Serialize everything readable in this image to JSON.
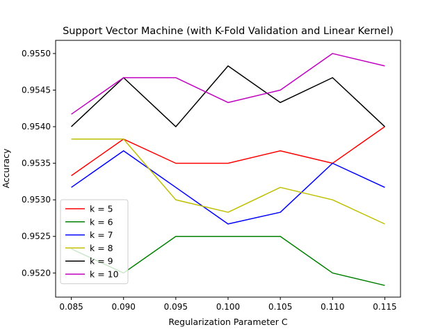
{
  "chart_data": {
    "type": "line",
    "title": "Support Vector Machine (with K-Fold Validation and Linear Kernel)",
    "xlabel": "Regularization Parameter C",
    "ylabel": "Accuracy",
    "x": [
      0.085,
      0.09,
      0.095,
      0.1,
      0.105,
      0.11,
      0.115
    ],
    "x_tick_labels": [
      "0.085",
      "0.090",
      "0.095",
      "0.100",
      "0.105",
      "0.110",
      "0.115"
    ],
    "y_ticks": [
      0.952,
      0.9525,
      0.953,
      0.9535,
      0.954,
      0.9545,
      0.955
    ],
    "y_tick_labels": [
      "0.9520",
      "0.9525",
      "0.9530",
      "0.9535",
      "0.9540",
      "0.9545",
      "0.9550"
    ],
    "xlim": [
      0.0835,
      0.1165
    ],
    "ylim": [
      0.95167,
      0.95518
    ],
    "grid": false,
    "legend_position": "lower-left",
    "series": [
      {
        "name": "k = 5",
        "color": "#ff0000",
        "values": [
          0.95333,
          0.95383,
          0.9535,
          0.9535,
          0.95367,
          0.9535,
          0.954
        ]
      },
      {
        "name": "k = 6",
        "color": "#008000",
        "values": [
          0.95233,
          0.952,
          0.9525,
          0.9525,
          0.9525,
          0.952,
          0.95183
        ]
      },
      {
        "name": "k = 7",
        "color": "#0000ff",
        "values": [
          0.95317,
          0.95367,
          0.95317,
          0.95267,
          0.95283,
          0.9535,
          0.95317
        ]
      },
      {
        "name": "k = 8",
        "color": "#bfbf00",
        "values": [
          0.95383,
          0.95383,
          0.953,
          0.95283,
          0.95317,
          0.953,
          0.95267
        ]
      },
      {
        "name": "k = 9",
        "color": "#000000",
        "values": [
          0.954,
          0.95467,
          0.954,
          0.95483,
          0.95433,
          0.95467,
          0.954
        ]
      },
      {
        "name": "k = 10",
        "color": "#bf00bf",
        "values": [
          0.95417,
          0.95467,
          0.95467,
          0.95433,
          0.9545,
          0.955,
          0.95483
        ]
      }
    ]
  }
}
